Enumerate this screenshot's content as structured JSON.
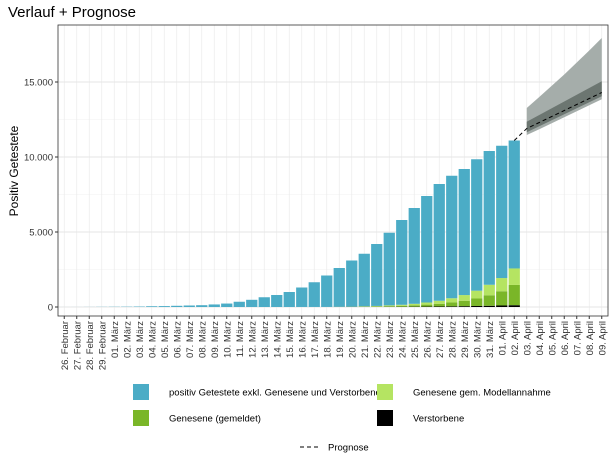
{
  "chart_data": {
    "type": "stacked_bar_forecast",
    "title": "Verlauf + Prognose",
    "y_label": "Positiv Getestete",
    "categories": [
      "26. Februar",
      "27. Februar",
      "28. Februar",
      "29. Februar",
      "01. März",
      "02. März",
      "03. März",
      "04. März",
      "05. März",
      "06. März",
      "07. März",
      "08. März",
      "09. März",
      "10. März",
      "11. März",
      "12. März",
      "13. März",
      "14. März",
      "15. März",
      "16. März",
      "17. März",
      "18. März",
      "19. März",
      "20. März",
      "21. März",
      "22. März",
      "23. März",
      "24. März",
      "25. März",
      "26. März",
      "27. März",
      "28. März",
      "29. März",
      "30. März",
      "31. März",
      "01. April",
      "02. April",
      "03. April",
      "04. April",
      "05. April",
      "06. April",
      "07. April",
      "08. April",
      "09. April"
    ],
    "ylim": [
      -600,
      18800
    ],
    "yticks": [
      0,
      {
        "value": 5000,
        "label": "5.000"
      },
      {
        "value": 10000,
        "label": "10.000"
      },
      {
        "value": 15000,
        "label": "15.000"
      }
    ],
    "grid": true,
    "series": [
      {
        "name": "positiv Getestete exkl. Genesene und Verstorbene",
        "color": "#4bacc6",
        "values": [
          1,
          2,
          5,
          10,
          15,
          20,
          30,
          50,
          60,
          80,
          100,
          120,
          170,
          230,
          350,
          480,
          650,
          800,
          1000,
          1298,
          1647,
          2096,
          2585,
          3078,
          3501,
          4129,
          4841,
          5652,
          6387,
          7101,
          7784,
          8166,
          8405,
          8762,
          8918,
          8820,
          8530,
          null,
          null,
          null,
          null,
          null,
          null,
          null
        ]
      },
      {
        "name": "Genesene gem. Modellannahme",
        "color": "#b5e462",
        "values": [
          0,
          0,
          0,
          0,
          0,
          0,
          0,
          0,
          0,
          0,
          0,
          0,
          0,
          0,
          0,
          0,
          0,
          0,
          0,
          0,
          0,
          0,
          0,
          0,
          20,
          30,
          50,
          70,
          100,
          140,
          200,
          280,
          380,
          520,
          700,
          880,
          1100,
          null,
          null,
          null,
          null,
          null,
          null,
          null
        ]
      },
      {
        "name": "Genesene (gemeldet)",
        "color": "#7ab628",
        "values": [
          0,
          0,
          0,
          0,
          0,
          0,
          0,
          0,
          0,
          0,
          0,
          0,
          0,
          0,
          0,
          0,
          0,
          0,
          0,
          0,
          0,
          0,
          10,
          15,
          20,
          30,
          45,
          60,
          90,
          130,
          180,
          260,
          360,
          500,
          700,
          950,
          1350,
          null,
          null,
          null,
          null,
          null,
          null,
          null
        ]
      },
      {
        "name": "Verstorbene",
        "color": "#000000",
        "values": [
          0,
          0,
          0,
          0,
          0,
          0,
          0,
          0,
          0,
          0,
          0,
          0,
          0,
          0,
          0,
          0,
          0,
          0,
          0,
          2,
          3,
          4,
          5,
          7,
          9,
          11,
          14,
          18,
          23,
          29,
          36,
          44,
          55,
          68,
          82,
          100,
          120,
          null,
          null,
          null,
          null,
          null,
          null,
          null
        ]
      }
    ],
    "forecast": {
      "name": "Prognose",
      "color": "#000000",
      "values": [
        null,
        null,
        null,
        null,
        null,
        null,
        null,
        null,
        null,
        null,
        null,
        null,
        null,
        null,
        null,
        null,
        null,
        null,
        null,
        null,
        null,
        null,
        null,
        null,
        null,
        null,
        null,
        null,
        null,
        null,
        null,
        null,
        null,
        null,
        null,
        null,
        11100,
        11900,
        12300,
        12700,
        13100,
        13500,
        13900,
        14300
      ]
    },
    "bands": [
      {
        "color": "#a5adaa",
        "lower": [
          null,
          null,
          null,
          null,
          null,
          null,
          null,
          null,
          null,
          null,
          null,
          null,
          null,
          null,
          null,
          null,
          null,
          null,
          null,
          null,
          null,
          null,
          null,
          null,
          null,
          null,
          null,
          null,
          null,
          null,
          null,
          null,
          null,
          null,
          null,
          null,
          null,
          11470,
          11850,
          12250,
          12650,
          13050,
          13450,
          13850
        ],
        "upper": [
          null,
          null,
          null,
          null,
          null,
          null,
          null,
          null,
          null,
          null,
          null,
          null,
          null,
          null,
          null,
          null,
          null,
          null,
          null,
          null,
          null,
          null,
          null,
          null,
          null,
          null,
          null,
          null,
          null,
          null,
          null,
          null,
          null,
          null,
          null,
          null,
          null,
          13270,
          14000,
          14750,
          15500,
          16300,
          17100,
          17930
        ]
      },
      {
        "color": "#6c7671",
        "lower": [
          null,
          null,
          null,
          null,
          null,
          null,
          null,
          null,
          null,
          null,
          null,
          null,
          null,
          null,
          null,
          null,
          null,
          null,
          null,
          null,
          null,
          null,
          null,
          null,
          null,
          null,
          null,
          null,
          null,
          null,
          null,
          null,
          null,
          null,
          null,
          null,
          null,
          11650,
          12050,
          12450,
          12850,
          13250,
          13650,
          14050
        ],
        "upper": [
          null,
          null,
          null,
          null,
          null,
          null,
          null,
          null,
          null,
          null,
          null,
          null,
          null,
          null,
          null,
          null,
          null,
          null,
          null,
          null,
          null,
          null,
          null,
          null,
          null,
          null,
          null,
          null,
          null,
          null,
          null,
          null,
          null,
          null,
          null,
          null,
          null,
          12350,
          12800,
          13250,
          13700,
          14150,
          14600,
          15050
        ]
      }
    ]
  }
}
